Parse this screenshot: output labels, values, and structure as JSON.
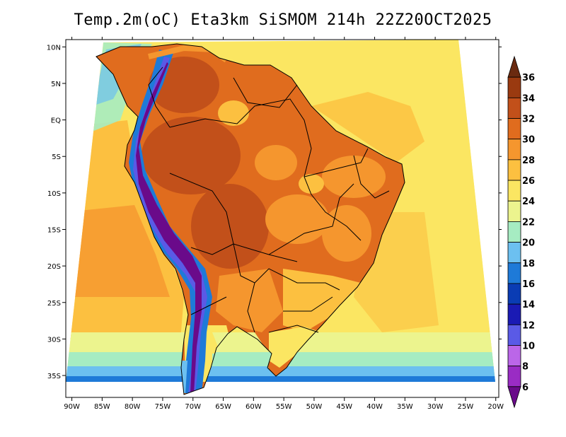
{
  "title": "Temp.2m(oC) Eta3km SiSMOM 214h 22Z20OCT2025",
  "chart_data": {
    "type": "heatmap",
    "title": "Temp.2m(oC) Eta3km SiSMOM 214h 22Z20OCT2025",
    "variable": "Temp.2m",
    "units": "oC",
    "model": "Eta3km SiSMOM",
    "forecast_hour": "214h",
    "valid_time": "22Z20OCT2025",
    "lon_ticks": [
      "90W",
      "85W",
      "80W",
      "75W",
      "70W",
      "65W",
      "60W",
      "55W",
      "50W",
      "45W",
      "40W",
      "35W",
      "30W",
      "25W",
      "20W"
    ],
    "lat_ticks": [
      "10N",
      "5N",
      "EQ",
      "5S",
      "10S",
      "15S",
      "20S",
      "25S",
      "30S",
      "35S"
    ],
    "lon_range": [
      -91,
      -19.5
    ],
    "lat_range": [
      -38,
      11
    ],
    "colorbar": {
      "labels": [
        "6",
        "8",
        "10",
        "12",
        "14",
        "16",
        "18",
        "20",
        "22",
        "24",
        "26",
        "28",
        "30",
        "32",
        "34",
        "36"
      ],
      "colors": [
        "#6a0a8a",
        "#9a2cc4",
        "#bb66e8",
        "#5a5ae6",
        "#1a1ab4",
        "#0a3cb4",
        "#1e7ad8",
        "#6cc0f0",
        "#a6ecc2",
        "#ecf48e",
        "#fbe662",
        "#fcc040",
        "#f5962e",
        "#e06c1e",
        "#c2501a",
        "#9a3a10",
        "#6a2a10"
      ],
      "extend": "both"
    }
  }
}
